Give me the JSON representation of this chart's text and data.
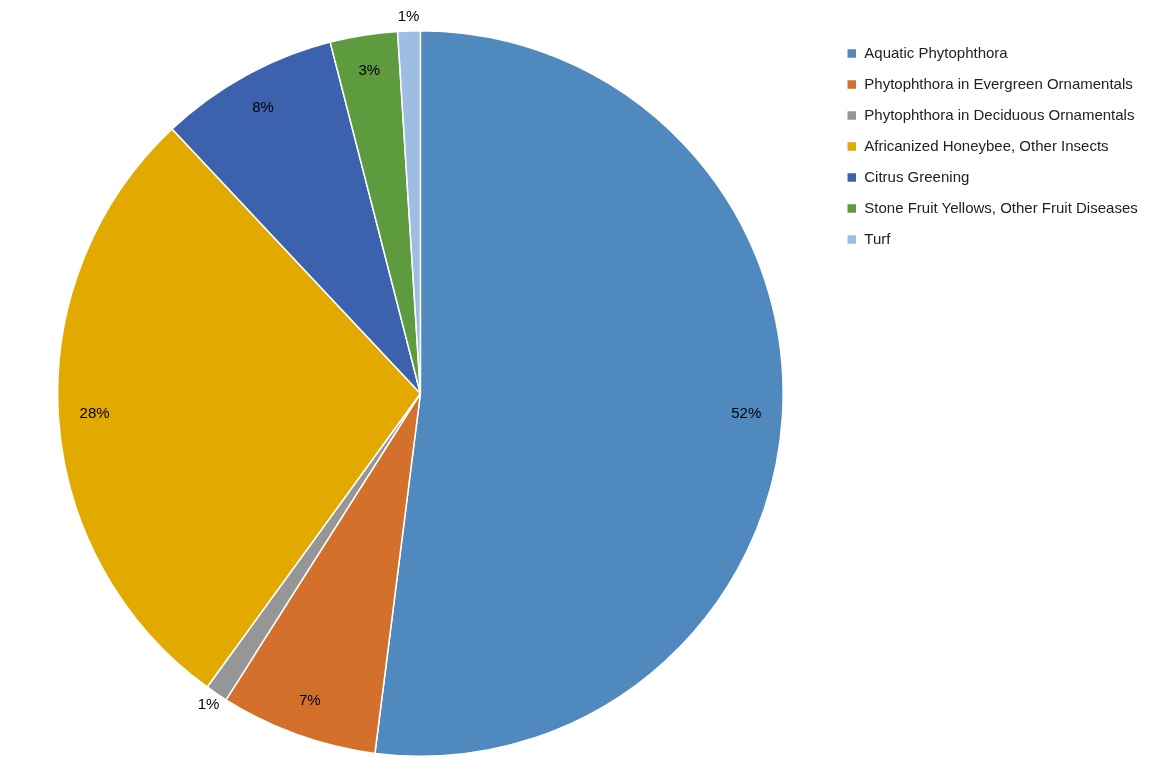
{
  "chart_data": {
    "type": "pie",
    "categories": [
      "Aquatic Phytophthora",
      "Phytophthora in Evergreen Ornamentals",
      "Phytophthora in Deciduous Ornamentals",
      "Africanized Honeybee, Other Insects",
      "Citrus Greening",
      "Stone Fruit Yellows, Other Fruit Diseases",
      "Turf"
    ],
    "values": [
      52,
      7,
      1,
      28,
      8,
      3,
      1
    ],
    "value_labels": [
      "52%",
      "7%",
      "1%",
      "28%",
      "8%",
      "3%",
      "1%"
    ],
    "colors": [
      "#4f89bd",
      "#d2702c",
      "#969696",
      "#e2a900",
      "#3c62ad",
      "#5e9a3e",
      "#9dbde3"
    ],
    "legend": "top right"
  }
}
